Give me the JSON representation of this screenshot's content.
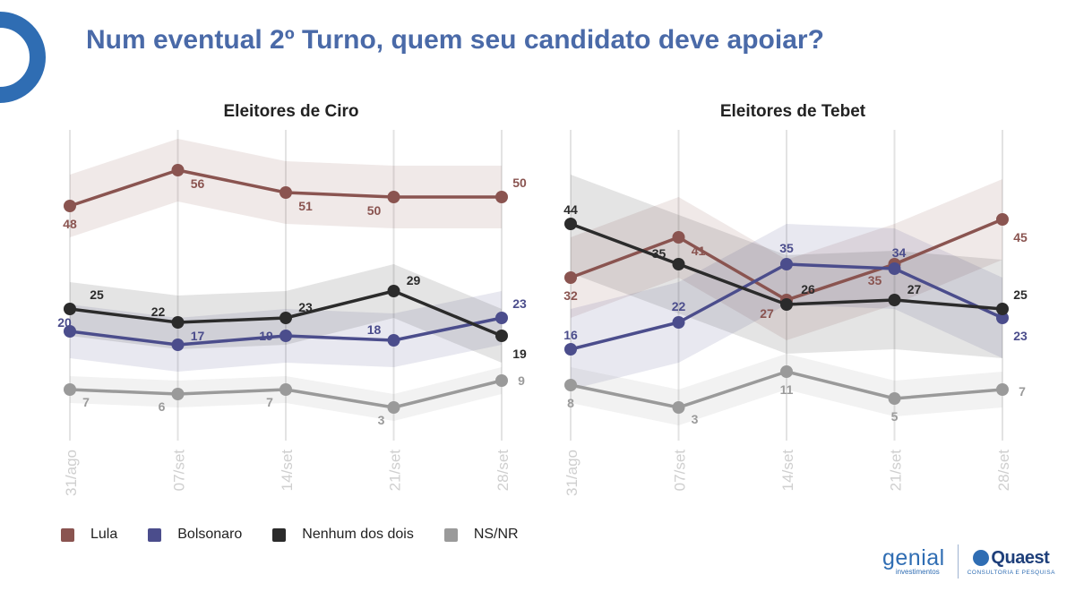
{
  "header": {
    "title": "Num eventual 2º Turno, quem seu candidato deve apoiar?"
  },
  "colors": {
    "lula": "#8a5450",
    "bolsonaro": "#4b4d8c",
    "nenhum": "#2b2b2b",
    "nsnr": "#9a9a9a",
    "title": "#4a6aa8",
    "accent_arc": "#2f6db3"
  },
  "legend": [
    {
      "key": "lula",
      "label": "Lula"
    },
    {
      "key": "bolsonaro",
      "label": "Bolsonaro"
    },
    {
      "key": "nenhum",
      "label": "Nenhum dos dois"
    },
    {
      "key": "nsnr",
      "label": "NS/NR"
    }
  ],
  "logos": {
    "genial": "genial",
    "genial_sub": "investimentos",
    "quaest": "Quaest",
    "quaest_sub": "CONSULTORIA E PESQUISA"
  },
  "chart_data": [
    {
      "type": "line",
      "title": "Eleitores de Ciro",
      "x": [
        "31/ago",
        "07/set",
        "14/set",
        "21/set",
        "28/set"
      ],
      "ylim": [
        0,
        70
      ],
      "grid": "vertical",
      "confidence_bands": true,
      "series": [
        {
          "key": "lula",
          "name": "Lula",
          "values": [
            48,
            56,
            51,
            50,
            50
          ]
        },
        {
          "key": "bolsonaro",
          "name": "Bolsonaro",
          "values": [
            20,
            17,
            19,
            18,
            23
          ]
        },
        {
          "key": "nenhum",
          "name": "Nenhum dos dois",
          "values": [
            25,
            22,
            23,
            29,
            19
          ]
        },
        {
          "key": "nsnr",
          "name": "NS/NR",
          "values": [
            7,
            6,
            7,
            3,
            9
          ]
        }
      ]
    },
    {
      "type": "line",
      "title": "Eleitores de Tebet",
      "x": [
        "31/ago",
        "07/set",
        "14/set",
        "21/set",
        "28/set"
      ],
      "ylim": [
        0,
        70
      ],
      "grid": "vertical",
      "confidence_bands": true,
      "series": [
        {
          "key": "lula",
          "name": "Lula",
          "values": [
            32,
            41,
            27,
            35,
            45
          ]
        },
        {
          "key": "bolsonaro",
          "name": "Bolsonaro",
          "values": [
            16,
            22,
            35,
            34,
            23
          ]
        },
        {
          "key": "nenhum",
          "name": "Nenhum dos dois",
          "values": [
            44,
            35,
            26,
            27,
            25
          ]
        },
        {
          "key": "nsnr",
          "name": "NS/NR",
          "values": [
            8,
            3,
            11,
            5,
            7
          ]
        }
      ]
    }
  ]
}
